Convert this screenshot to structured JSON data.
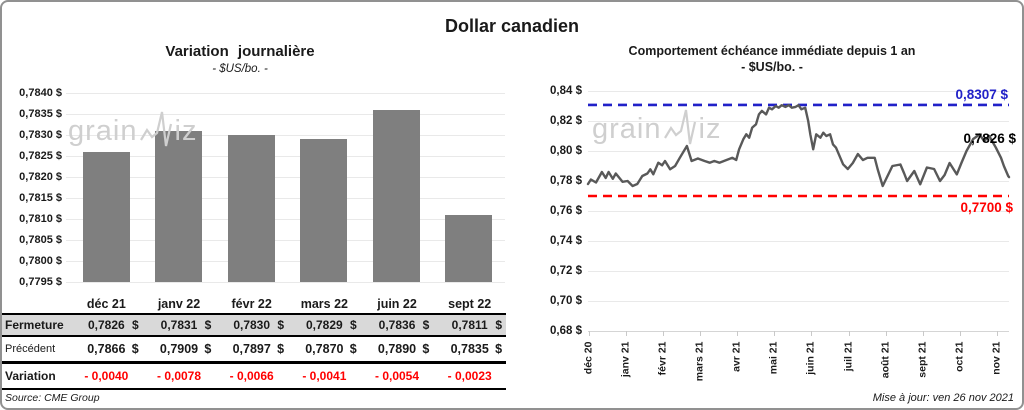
{
  "page_title": "Dollar canadien",
  "source_note": "Source: CME Group",
  "update_note": "Mise à jour: ven 26 nov 2021",
  "watermark": {
    "part1": "grain",
    "part2": "iz"
  },
  "colors": {
    "bar": "#7f7f7f",
    "line": "#595959",
    "upper_ref": "#2121c8",
    "lower_ref": "#ff0000",
    "variation_text": "#ff0000",
    "highlight_row_bg": "#d9d9d9"
  },
  "chart_data": [
    {
      "type": "bar",
      "title": "Variation journalière",
      "subtitle": "- $US/bo. -",
      "categories": [
        "déc 21",
        "janv 22",
        "févr 22",
        "mars 22",
        "juin 22",
        "sept 22"
      ],
      "values": [
        0.7826,
        0.7831,
        0.783,
        0.7829,
        0.7836,
        0.7811
      ],
      "ylim": [
        0.7795,
        0.784
      ],
      "ytick_labels": [
        "0,7840 $",
        "0,7835 $",
        "0,7830 $",
        "0,7825 $",
        "0,7820 $",
        "0,7815 $",
        "0,7810 $",
        "0,7805 $",
        "0,7800 $",
        "0,7795 $"
      ],
      "grid": true,
      "legend": "none"
    },
    {
      "type": "line",
      "title": "Comportement échéance immédiate depuis 1 an",
      "subtitle": "- $US/bo. -",
      "x_ticks": [
        "déc 20",
        "janv 21",
        "févr 21",
        "mars 21",
        "avr 21",
        "mai 21",
        "juin 21",
        "juil 21",
        "août 21",
        "sept 21",
        "oct 21",
        "nov 21"
      ],
      "ylim": [
        0.68,
        0.84
      ],
      "ytick_labels": [
        "0,84 $",
        "0,82 $",
        "0,80 $",
        "0,78 $",
        "0,76 $",
        "0,74 $",
        "0,72 $",
        "0,70 $",
        "0,68 $"
      ],
      "grid": true,
      "legend": "none",
      "ref_lines": [
        {
          "name": "upper",
          "value": 0.8307,
          "label": "0,8307 $",
          "color": "#2121c8"
        },
        {
          "name": "lower",
          "value": 0.77,
          "label": "0,7700 $",
          "color": "#ff0000"
        }
      ],
      "last_price_label": "0,7826 $",
      "series": [
        {
          "name": "échéance immédiate",
          "points": [
            [
              0.0,
              0.778
            ],
            [
              0.007,
              0.781
            ],
            [
              0.019,
              0.779
            ],
            [
              0.033,
              0.786
            ],
            [
              0.042,
              0.782
            ],
            [
              0.049,
              0.786
            ],
            [
              0.059,
              0.7815
            ],
            [
              0.066,
              0.785
            ],
            [
              0.082,
              0.7795
            ],
            [
              0.094,
              0.78
            ],
            [
              0.106,
              0.7767
            ],
            [
              0.117,
              0.778
            ],
            [
              0.129,
              0.7833
            ],
            [
              0.141,
              0.785
            ],
            [
              0.148,
              0.7878
            ],
            [
              0.155,
              0.7845
            ],
            [
              0.167,
              0.7922
            ],
            [
              0.176,
              0.7905
            ],
            [
              0.183,
              0.7933
            ],
            [
              0.195,
              0.7878
            ],
            [
              0.207,
              0.79
            ],
            [
              0.218,
              0.7955
            ],
            [
              0.235,
              0.8033
            ],
            [
              0.246,
              0.7933
            ],
            [
              0.261,
              0.795
            ],
            [
              0.277,
              0.7933
            ],
            [
              0.289,
              0.7922
            ],
            [
              0.3,
              0.7933
            ],
            [
              0.312,
              0.7922
            ],
            [
              0.329,
              0.794
            ],
            [
              0.343,
              0.7955
            ],
            [
              0.352,
              0.794
            ],
            [
              0.359,
              0.8011
            ],
            [
              0.369,
              0.8078
            ],
            [
              0.376,
              0.8111
            ],
            [
              0.383,
              0.8089
            ],
            [
              0.39,
              0.8156
            ],
            [
              0.399,
              0.8178
            ],
            [
              0.406,
              0.8244
            ],
            [
              0.413,
              0.8267
            ],
            [
              0.423,
              0.8244
            ],
            [
              0.43,
              0.8289
            ],
            [
              0.437,
              0.8278
            ],
            [
              0.446,
              0.83
            ],
            [
              0.453,
              0.8289
            ],
            [
              0.46,
              0.8305
            ],
            [
              0.469,
              0.8294
            ],
            [
              0.477,
              0.8305
            ],
            [
              0.484,
              0.8289
            ],
            [
              0.493,
              0.8294
            ],
            [
              0.5,
              0.8305
            ],
            [
              0.507,
              0.8278
            ],
            [
              0.516,
              0.8289
            ],
            [
              0.523,
              0.82
            ],
            [
              0.528,
              0.8111
            ],
            [
              0.535,
              0.8011
            ],
            [
              0.542,
              0.8111
            ],
            [
              0.552,
              0.8089
            ],
            [
              0.559,
              0.8122
            ],
            [
              0.566,
              0.81
            ],
            [
              0.575,
              0.8111
            ],
            [
              0.582,
              0.8044
            ],
            [
              0.589,
              0.8022
            ],
            [
              0.606,
              0.7911
            ],
            [
              0.617,
              0.788
            ],
            [
              0.629,
              0.792
            ],
            [
              0.641,
              0.798
            ],
            [
              0.653,
              0.794
            ],
            [
              0.664,
              0.7955
            ],
            [
              0.681,
              0.7955
            ],
            [
              0.688,
              0.788
            ],
            [
              0.7,
              0.7767
            ],
            [
              0.711,
              0.783
            ],
            [
              0.723,
              0.79
            ],
            [
              0.742,
              0.791
            ],
            [
              0.751,
              0.785
            ],
            [
              0.758,
              0.78
            ],
            [
              0.775,
              0.7867
            ],
            [
              0.789,
              0.7778
            ],
            [
              0.805,
              0.789
            ],
            [
              0.822,
              0.788
            ],
            [
              0.836,
              0.78
            ],
            [
              0.847,
              0.784
            ],
            [
              0.859,
              0.792
            ],
            [
              0.876,
              0.7844
            ],
            [
              0.887,
              0.792
            ],
            [
              0.899,
              0.8
            ],
            [
              0.915,
              0.808
            ],
            [
              0.93,
              0.811
            ],
            [
              0.941,
              0.8067
            ],
            [
              0.953,
              0.81
            ],
            [
              0.969,
              0.8022
            ],
            [
              0.981,
              0.7955
            ],
            [
              0.988,
              0.79
            ],
            [
              0.998,
              0.7833
            ],
            [
              1.0,
              0.7826
            ]
          ]
        }
      ]
    }
  ],
  "left_table": {
    "columns": [
      "déc 21",
      "janv 22",
      "févr 22",
      "mars 22",
      "juin 22",
      "sept 22"
    ],
    "rows": [
      {
        "label": "Fermeture",
        "values": [
          "0,7826 $",
          "0,7831 $",
          "0,7830 $",
          "0,7829 $",
          "0,7836 $",
          "0,7811 $"
        ],
        "highlight": true
      },
      {
        "label": "Précédent",
        "values": [
          "0,7866 $",
          "0,7909 $",
          "0,7897 $",
          "0,7870 $",
          "0,7890 $",
          "0,7835 $"
        ],
        "highlight": false
      },
      {
        "label": "Variation",
        "values": [
          "- 0,0040",
          "- 0,0078",
          "- 0,0066",
          "- 0,0041",
          "- 0,0054",
          "- 0,0023"
        ],
        "highlight": false
      }
    ]
  }
}
